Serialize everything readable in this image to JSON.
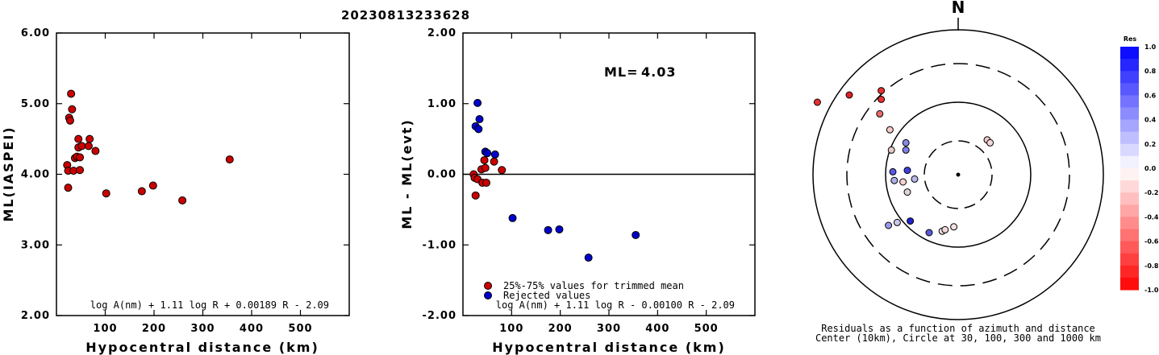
{
  "title": "20230813233628",
  "chart_data": [
    {
      "type": "scatter",
      "xlabel": "Hypocentral distance (km)",
      "ylabel": "ML(IASPEI)",
      "xlim": [
        0,
        600
      ],
      "ylim": [
        2.0,
        6.0
      ],
      "xticks": [
        "100",
        "200",
        "300",
        "400",
        "500"
      ],
      "yticks": [
        "2.00",
        "3.00",
        "4.00",
        "5.00",
        "6.00"
      ],
      "formula": "log A(nm) + 1.11 log R + 0.00189 R - 2.09",
      "series": [
        {
          "color": "#cc0000",
          "points": [
            [
              22,
              4.13
            ],
            [
              24,
              3.81
            ],
            [
              24,
              4.05
            ],
            [
              26,
              4.8
            ],
            [
              28,
              4.76
            ],
            [
              30,
              5.14
            ],
            [
              32,
              4.92
            ],
            [
              35,
              4.05
            ],
            [
              38,
              4.23
            ],
            [
              42,
              4.25
            ],
            [
              45,
              4.38
            ],
            [
              45,
              4.5
            ],
            [
              48,
              4.06
            ],
            [
              48,
              4.24
            ],
            [
              52,
              4.4
            ],
            [
              66,
              4.4
            ],
            [
              68,
              4.5
            ],
            [
              80,
              4.33
            ],
            [
              102,
              3.73
            ],
            [
              175,
              3.76
            ],
            [
              198,
              3.84
            ],
            [
              258,
              3.63
            ],
            [
              355,
              4.21
            ]
          ]
        }
      ]
    },
    {
      "type": "scatter",
      "xlabel": "Hypocentral distance (km)",
      "ylabel": "ML - ML(evt)",
      "xlim": [
        0,
        600
      ],
      "ylim": [
        -2.0,
        2.0
      ],
      "xticks": [
        "100",
        "200",
        "300",
        "400",
        "500"
      ],
      "yticks": [
        "-2.00",
        "-1.00",
        "0.00",
        "1.00",
        "2.00"
      ],
      "ml_label": "ML=",
      "ml_value": "4.03",
      "formula": "log A(nm) + 1.11 log R - 0.00100 R - 2.09",
      "legend": [
        {
          "label": "25%-75% values for trimmed mean",
          "color": "#cc0000"
        },
        {
          "label": "Rejected values",
          "color": "#0000cc"
        }
      ],
      "series": [
        {
          "name": "25%-75% values for trimmed mean",
          "color": "#cc0000",
          "points": [
            [
              22,
              0.0
            ],
            [
              24,
              -0.05
            ],
            [
              26,
              -0.3
            ],
            [
              30,
              -0.07
            ],
            [
              38,
              0.07
            ],
            [
              40,
              -0.12
            ],
            [
              44,
              0.2
            ],
            [
              46,
              0.09
            ],
            [
              48,
              -0.12
            ],
            [
              64,
              0.18
            ],
            [
              80,
              0.06
            ]
          ]
        },
        {
          "name": "Rejected values",
          "color": "#0000cc",
          "points": [
            [
              26,
              0.68
            ],
            [
              30,
              1.01
            ],
            [
              32,
              0.64
            ],
            [
              34,
              0.78
            ],
            [
              46,
              0.32
            ],
            [
              50,
              0.3
            ],
            [
              66,
              0.28
            ],
            [
              102,
              -0.62
            ],
            [
              175,
              -0.79
            ],
            [
              198,
              -0.78
            ],
            [
              258,
              -1.18
            ],
            [
              355,
              -0.86
            ]
          ]
        }
      ]
    }
  ],
  "polar": {
    "north_label": "N",
    "caption_line1": "Residuals as a function of azimuth and distance",
    "caption_line2": "Center (10km), Circle at 30, 100, 300 and 1000 km",
    "colorbar_title": "Res",
    "colorbar_ticks": [
      "1.0",
      "0.8",
      "0.6",
      "0.4",
      "0.2",
      "0.0",
      "-0.2",
      "-0.4",
      "-0.6",
      "-0.8",
      "-1.0"
    ],
    "stations": [
      {
        "dx": -0.97,
        "dy": 0.5,
        "color": "#e83030"
      },
      {
        "dx": -0.75,
        "dy": 0.55,
        "color": "#e02020"
      },
      {
        "dx": -0.53,
        "dy": 0.52,
        "color": "#e83030"
      },
      {
        "dx": -0.53,
        "dy": 0.58,
        "color": "#e83030"
      },
      {
        "dx": -0.54,
        "dy": 0.42,
        "color": "#e86a6a"
      },
      {
        "dx": -0.47,
        "dy": 0.31,
        "color": "#f8c8c8"
      },
      {
        "dx": -0.46,
        "dy": 0.17,
        "color": "#e8c8c8"
      },
      {
        "dx": -0.45,
        "dy": 0.02,
        "color": "#5a5ae8"
      },
      {
        "dx": -0.36,
        "dy": 0.17,
        "color": "#8080e8"
      },
      {
        "dx": -0.36,
        "dy": 0.22,
        "color": "#8888e8"
      },
      {
        "dx": -0.35,
        "dy": 0.03,
        "color": "#4040e0"
      },
      {
        "dx": -0.3,
        "dy": -0.03,
        "color": "#b8b8ec"
      },
      {
        "dx": -0.38,
        "dy": -0.05,
        "color": "#f4d0d0"
      },
      {
        "dx": -0.35,
        "dy": -0.12,
        "color": "#e0d4d4"
      },
      {
        "dx": -0.44,
        "dy": -0.04,
        "color": "#b0b0e8"
      },
      {
        "dx": -0.33,
        "dy": -0.32,
        "color": "#2020d0"
      },
      {
        "dx": -0.48,
        "dy": -0.35,
        "color": "#9a9ae8"
      },
      {
        "dx": -0.42,
        "dy": -0.33,
        "color": "#c8c8ec"
      },
      {
        "dx": -0.2,
        "dy": -0.4,
        "color": "#5a5ae0"
      },
      {
        "dx": -0.11,
        "dy": -0.39,
        "color": "#f0e0e0"
      },
      {
        "dx": -0.09,
        "dy": -0.38,
        "color": "#f2d8d8"
      },
      {
        "dx": -0.03,
        "dy": -0.36,
        "color": "#f0e0e0"
      },
      {
        "dx": 0.2,
        "dy": 0.24,
        "color": "#f0c8c8"
      },
      {
        "dx": 0.22,
        "dy": 0.22,
        "color": "#f4d8d8"
      }
    ]
  }
}
